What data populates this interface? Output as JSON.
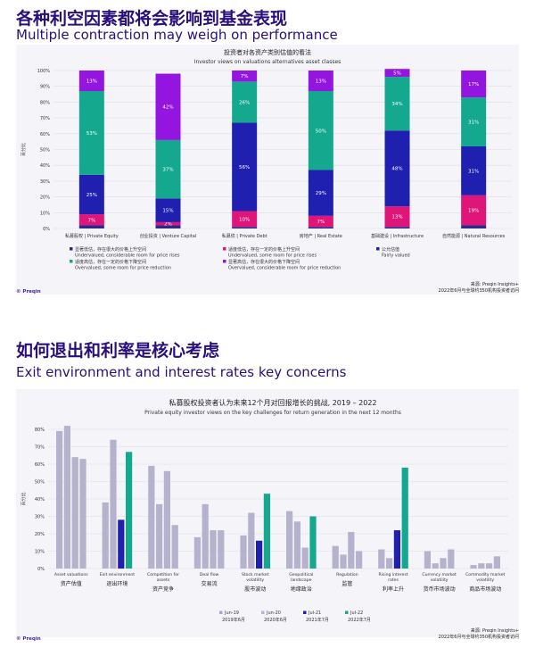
{
  "section1": {
    "title_cn": "各种利空因素都将会影响到基金表现",
    "title_en": "Multiple contraction may weigh on performance",
    "source_line1": "来源: Preqin Insights+",
    "source_line2": "2022年6月与全球约350机构投资者访问",
    "logo": "© Preqin"
  },
  "section2": {
    "title_cn": "如何退出和利率是核心考虑",
    "title_en": "Exit environment and interest rates key concerns",
    "source_line1": "来源: Preqin Insights+",
    "source_line2": "2022年6月与全球约350机构投资者访问",
    "logo": "© Preqin"
  },
  "chart_data": [
    {
      "type": "bar",
      "stacked": true,
      "title": "投资者对各资产类别估值的看法",
      "subtitle": "Investor views on valuations alternatives asset classes",
      "ylabel": "百分比",
      "ylim": [
        0,
        100
      ],
      "yticks": [
        "0%",
        "10%",
        "20%",
        "30%",
        "40%",
        "50%",
        "60%",
        "70%",
        "80%",
        "90%",
        "100%"
      ],
      "grid": true,
      "categories": [
        "私募股权 | Private Equity",
        "创业投资 | Venture Capital",
        "私募债 | Private Debt",
        "房地产 | Real Estate",
        "基础建设 | Infrastructure",
        "自然能源 | Natural Resources"
      ],
      "series": [
        {
          "name": "显著低估，存在很大的价格上升空间",
          "name_en": "Undervalued, considerable room for price rises",
          "color": "#2a2a8a",
          "values": [
            2,
            2,
            1,
            1,
            1,
            2
          ],
          "labels": [
            "",
            "",
            "",
            "",
            "",
            ""
          ]
        },
        {
          "name": "适度低估，存在一定的价格上升空间",
          "name_en": "Undervalued, some room for price rises",
          "color": "#e0157a",
          "values": [
            7,
            2,
            10,
            7,
            13,
            19
          ],
          "labels": [
            "7%",
            "2%",
            "10%",
            "7%",
            "13%",
            "19%"
          ]
        },
        {
          "name": "公允估值",
          "name_en": "Fairly valued",
          "color": "#1f1fb0",
          "values": [
            25,
            15,
            56,
            29,
            48,
            31
          ],
          "labels": [
            "25%",
            "15%",
            "56%",
            "29%",
            "48%",
            "31%"
          ]
        },
        {
          "name": "适度高估，存在一定的价格下降空间",
          "name_en": "Overvalued, some room for price reduction",
          "color": "#14a88f",
          "values": [
            53,
            37,
            26,
            50,
            34,
            31
          ],
          "labels": [
            "53%",
            "37%",
            "26%",
            "50%",
            "34%",
            "31%"
          ]
        },
        {
          "name": "显著高估，存在很大的价格下降空间",
          "name_en": "Overvalued, considerable room for price reduction",
          "color": "#9414e0",
          "values": [
            13,
            42,
            7,
            13,
            5,
            17
          ],
          "labels": [
            "13%",
            "42%",
            "7%",
            "13%",
            "5%",
            "17%"
          ]
        }
      ]
    },
    {
      "type": "bar",
      "title": "私募股权投资者认为未来12个月对回报增长的挑战, 2019 – 2022",
      "subtitle": "Private equity investor views on the key challenges for return generation in the next 12 months",
      "ylabel": "百分比",
      "ylim": [
        0,
        80
      ],
      "yticks": [
        "0%",
        "10%",
        "20%",
        "30%",
        "40%",
        "50%",
        "60%",
        "70%",
        "80%"
      ],
      "grid": true,
      "categories_en": [
        "Asset valuations",
        "Exit environment",
        "Competition for assets",
        "Deal flow",
        "Stock market volatility",
        "Geopolitical landscape",
        "Regulation",
        "Rising interest rates",
        "Currency market volatility",
        "Commodity market volatility"
      ],
      "categories_cn": [
        "资产估值",
        "退出环境",
        "资产竞争",
        "交易流",
        "股市波动",
        "地缘政治",
        "监管",
        "利率上升",
        "货币市场波动",
        "商品市场波动"
      ],
      "series": [
        {
          "name": "Jun-19",
          "name_cn": "2019年6月",
          "color": "#a9a7c8",
          "values": [
            79,
            38,
            59,
            18,
            19,
            33,
            13,
            11,
            10,
            2
          ]
        },
        {
          "name": "Jun-20",
          "name_cn": "2020年6月",
          "color": "#b7b5cf",
          "values": [
            82,
            74,
            37,
            37,
            32,
            27,
            8,
            6,
            3,
            3
          ]
        },
        {
          "name": "Jul-21",
          "name_cn": "2021年7月",
          "color": "#1f1fb0",
          "values": [
            64,
            28,
            56,
            22,
            16,
            12,
            21,
            22,
            6,
            3
          ]
        },
        {
          "name": "Jul-22",
          "name_cn": "2022年7月",
          "color": "#14a88f",
          "values": [
            63,
            67,
            25,
            22,
            43,
            30,
            10,
            58,
            11,
            7
          ]
        }
      ],
      "series_display": [
        {
          "color": "#a9a7c8",
          "values": [
            79,
            38,
            59,
            18,
            19,
            33,
            13,
            11,
            10,
            2
          ]
        },
        {
          "color": "#b7b5cf",
          "values": [
            82,
            74,
            37,
            37,
            32,
            27,
            8,
            6,
            3,
            3
          ]
        },
        {
          "color": "#b7b5cf",
          "values": [
            64,
            28,
            56,
            22,
            16,
            12,
            21,
            22,
            6,
            3
          ]
        },
        {
          "color": "#b7b5cf",
          "values": [
            63,
            67,
            25,
            22,
            43,
            30,
            10,
            58,
            11,
            7
          ]
        }
      ],
      "highlight": {
        "1": "#1f1fb0",
        "4": "#1f1fb0",
        "7": "#1f1fb0"
      },
      "highlight_last": {
        "1": "#14a88f",
        "4": "#14a88f",
        "5": "#14a88f",
        "7": "#14a88f"
      }
    }
  ]
}
